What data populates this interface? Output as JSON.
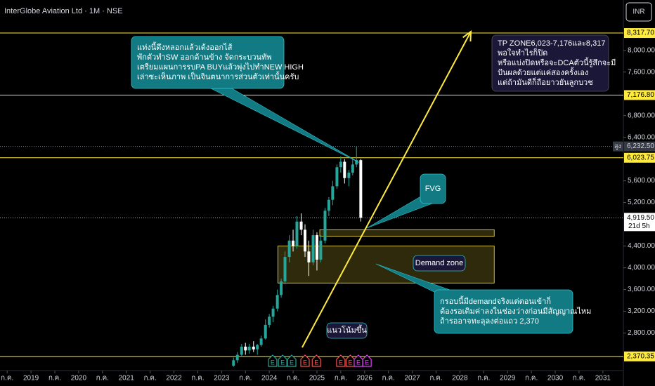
{
  "chart_data": {
    "type": "candlestick",
    "title": "InterGlobe Aviation Ltd · 1M · NSE",
    "currency": "INR",
    "up_color": "#26a69a",
    "down_color": "#ffffff",
    "level_color": "#ffeb3b",
    "grid": false,
    "xlim": [
      2018.35,
      2031.43
    ],
    "ylim": [
      2110,
      8925
    ],
    "xticks": [
      {
        "value": 2018.5,
        "label": "ก.ค."
      },
      2019,
      {
        "value": 2019.5,
        "label": "ก.ค."
      },
      2020,
      {
        "value": 2020.5,
        "label": "ก.ค."
      },
      2021,
      {
        "value": 2021.5,
        "label": "ก.ค."
      },
      2022,
      {
        "value": 2022.5,
        "label": "ก.ค."
      },
      2023,
      {
        "value": 2023.5,
        "label": "ก.ค."
      },
      2024,
      {
        "value": 2024.5,
        "label": "ก.ค."
      },
      2025,
      {
        "value": 2025.5,
        "label": "ก.ค."
      },
      2026,
      {
        "value": 2026.5,
        "label": "ก.ค."
      },
      2027,
      {
        "value": 2027.5,
        "label": "ก.ค."
      },
      2028,
      {
        "value": 2028.5,
        "label": "ก.ค."
      },
      2029,
      {
        "value": 2029.5,
        "label": "ก.ค."
      },
      2030,
      {
        "value": 2030.5,
        "label": "ก.ค."
      },
      2031
    ],
    "yticks": [
      {
        "value": 2800,
        "label": "2,800.00"
      },
      {
        "value": 3200,
        "label": "3,200.00"
      },
      {
        "value": 3600,
        "label": "3,600.00"
      },
      {
        "value": 4000,
        "label": "4,000.00"
      },
      {
        "value": 4400,
        "label": "4,400.00"
      },
      {
        "value": 5200,
        "label": "5,200.00"
      },
      {
        "value": 5600,
        "label": "5,600.00"
      },
      {
        "value": 6400,
        "label": "6,400.00"
      },
      {
        "value": 6800,
        "label": "6,800.00"
      },
      {
        "value": 7600,
        "label": "7,600.00"
      },
      {
        "value": 8000,
        "label": "8,000.00"
      }
    ],
    "x": [
      2023.25,
      2023.33,
      2023.42,
      2023.5,
      2023.58,
      2023.67,
      2023.75,
      2023.83,
      2023.92,
      2024.0,
      2024.08,
      2024.17,
      2024.25,
      2024.33,
      2024.42,
      2024.5,
      2024.58,
      2024.67,
      2024.75,
      2024.83,
      2024.92,
      2025.0,
      2025.08,
      2025.17,
      2025.25,
      2025.33,
      2025.42,
      2025.5,
      2025.58,
      2025.67,
      2025.75,
      2025.83,
      2025.92
    ],
    "open": [
      2200,
      2300,
      2400,
      2550,
      2480,
      2550,
      2500,
      2580,
      2700,
      2950,
      3100,
      3250,
      3500,
      3750,
      4200,
      4500,
      4400,
      4850,
      4700,
      4300,
      4100,
      4600,
      4150,
      4500,
      5050,
      5250,
      5500,
      5850,
      5950,
      5650,
      5750,
      5900,
      5980
    ],
    "high": [
      2350,
      2450,
      2600,
      2620,
      2600,
      2650,
      2600,
      2750,
      3050,
      3150,
      3300,
      3600,
      3800,
      4300,
      4600,
      4700,
      4950,
      5000,
      4800,
      4500,
      4700,
      4650,
      4600,
      5100,
      5300,
      5600,
      5900,
      6050,
      6000,
      5800,
      6000,
      6232.5,
      6000
    ],
    "low": [
      2180,
      2250,
      2380,
      2400,
      2420,
      2450,
      2400,
      2550,
      2680,
      2900,
      3000,
      3200,
      3450,
      3700,
      4100,
      4300,
      4350,
      4600,
      4200,
      3850,
      4050,
      3950,
      4100,
      4450,
      4950,
      5150,
      5450,
      5750,
      5550,
      5500,
      5700,
      5850,
      4850
    ],
    "close": [
      2300,
      2400,
      2550,
      2480,
      2550,
      2500,
      2580,
      2700,
      2950,
      3100,
      3250,
      3500,
      3750,
      4200,
      4500,
      4400,
      4850,
      4700,
      4300,
      4100,
      4600,
      4150,
      4500,
      5050,
      5250,
      5500,
      5850,
      5950,
      5650,
      5750,
      5900,
      5980,
      4919.5
    ],
    "levels": [
      {
        "value": 8317.7,
        "label": "8,317.70"
      },
      {
        "value": 7176.8,
        "label": "7,176.80"
      },
      {
        "value": 6023.75,
        "label": "6,023.75"
      },
      {
        "value": 2370.35,
        "label": "2,370.35"
      }
    ],
    "high_marker": {
      "value": 6232.5,
      "label": "6,232.50",
      "tag": "สูง"
    },
    "last_price": {
      "value": 4919.5,
      "label": "4,919.50",
      "countdown": "21d 5h"
    },
    "zones": [
      {
        "x": [
          2025.06,
          2028.72
        ],
        "y": [
          4580,
          4700
        ]
      },
      {
        "x": [
          2024.18,
          2028.72
        ],
        "y": [
          3720,
          4400
        ]
      }
    ],
    "trend_line": {
      "x": [
        2024.69,
        2028.23
      ],
      "y": [
        2536,
        8344
      ]
    },
    "events": [
      {
        "x": 2024.07,
        "label": "E",
        "color": "#26a69a"
      },
      {
        "x": 2024.28,
        "label": "E",
        "color": "#26a69a"
      },
      {
        "x": 2024.47,
        "label": "E",
        "color": "#26a69a"
      },
      {
        "x": 2024.75,
        "label": "E",
        "color": "#ef5350"
      },
      {
        "x": 2024.99,
        "label": "E",
        "color": "#ef5350"
      },
      {
        "x": 2025.5,
        "label": "E",
        "color": "#ef5350"
      },
      {
        "x": 2025.7,
        "label": "E",
        "color": "#ef5350"
      },
      {
        "x": 2025.87,
        "label": "E",
        "color": "#e040fb"
      },
      {
        "x": 2026.05,
        "label": "E",
        "color": "#e040fb"
      }
    ],
    "callouts": [
      {
        "lines": [
          "แท่งนี้ดึงหลอกแล้วเด้งออกไส้",
          "พักตัวทำSW ออกด้านข้าง จัดกระบวนทัพ",
          "เตรียมแผนการรบPA BUYแล้วพุ่งไปทำNEW HIGH",
          "เล่าซะเห็นภาพ เป็นจินตนาการส่วนตัวเท่านั้นครับ"
        ]
      },
      {
        "lines": [
          "TP ZONE6,023-7,176และ8,317",
          "พอใจทำไรก็ปิด",
          "หรือแบ่งปิดหรือจะDCAตัวนี้รู้สึกจะมี",
          "ปันผลด้วยแต่แค่สองครั้งเอง",
          "แต่ถ้ามันดีก็ถือยาวยันลูกบวช"
        ]
      },
      {
        "lines": [
          "FVG"
        ]
      },
      {
        "lines": [
          "กรอบนี้มีdemandจริงแต่ตอนเข้าก็",
          "ต้องรอเติมค่าลงในช่องว่างก่อนมีสัญญาณไหม",
          "ถ้ารออาจทะลุลงต่อแถว 2,370"
        ]
      },
      {
        "lines": [
          "Demand zone"
        ]
      },
      {
        "lines": [
          "แนวโน้มขึ้น"
        ]
      }
    ]
  }
}
